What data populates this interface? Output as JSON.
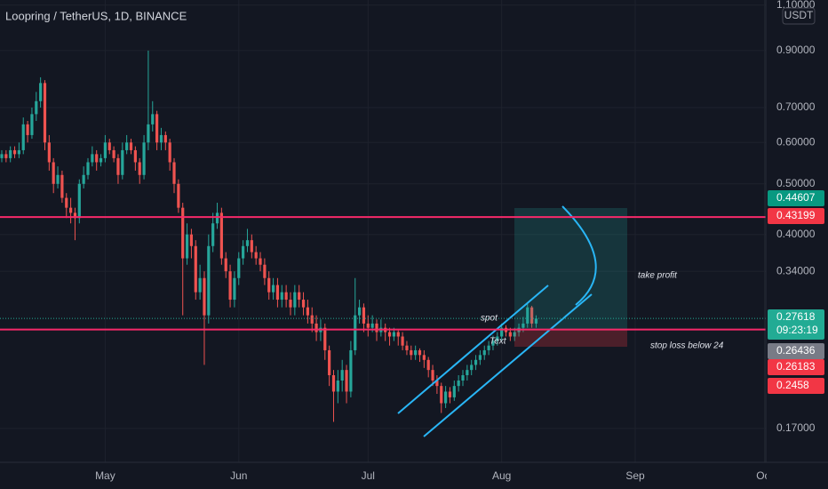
{
  "chart_data": {
    "type": "candlestick",
    "title": "Loopring / TetherUS, 1D, BINANCE",
    "currency": "USDT",
    "log": true,
    "grid": true,
    "up_color": "#26a69a",
    "down_color": "#ef5350",
    "xlim": [
      -0.41,
      177.3
    ],
    "xticks": [
      {
        "value": 24,
        "label": "May"
      },
      {
        "value": 55,
        "label": "Jun"
      },
      {
        "value": 85,
        "label": "Jul"
      },
      {
        "value": 116,
        "label": "Aug"
      },
      {
        "value": 147,
        "label": "Sep"
      },
      {
        "value": 177,
        "label": "Oct"
      }
    ],
    "ylim": [
      0.1464,
      1.125
    ],
    "yticks": [
      {
        "value": 1.1,
        "label": "1.10000"
      },
      {
        "value": 0.9,
        "label": "0.90000"
      },
      {
        "value": 0.7,
        "label": "0.70000"
      },
      {
        "value": 0.6,
        "label": "0.60000"
      },
      {
        "value": 0.5,
        "label": "0.50000"
      },
      {
        "value": 0.4,
        "label": "0.40000"
      },
      {
        "value": 0.34,
        "label": "0.34000"
      },
      {
        "value": 0.17,
        "label": "0.17000"
      }
    ],
    "candles": [
      [
        0.56,
        0.58,
        0.55,
        0.57
      ],
      [
        0.57,
        0.58,
        0.55,
        0.56
      ],
      [
        0.56,
        0.59,
        0.55,
        0.58
      ],
      [
        0.58,
        0.59,
        0.56,
        0.57
      ],
      [
        0.57,
        0.6,
        0.56,
        0.58
      ],
      [
        0.58,
        0.67,
        0.57,
        0.65
      ],
      [
        0.65,
        0.66,
        0.6,
        0.62
      ],
      [
        0.62,
        0.7,
        0.61,
        0.68
      ],
      [
        0.68,
        0.75,
        0.66,
        0.72
      ],
      [
        0.72,
        0.8,
        0.7,
        0.78
      ],
      [
        0.78,
        0.79,
        0.58,
        0.6
      ],
      [
        0.6,
        0.62,
        0.53,
        0.55
      ],
      [
        0.55,
        0.56,
        0.48,
        0.5
      ],
      [
        0.5,
        0.54,
        0.49,
        0.52
      ],
      [
        0.52,
        0.53,
        0.46,
        0.47
      ],
      [
        0.47,
        0.48,
        0.43,
        0.45
      ],
      [
        0.45,
        0.47,
        0.42,
        0.44
      ],
      [
        0.44,
        0.45,
        0.39,
        0.43
      ],
      [
        0.43,
        0.51,
        0.42,
        0.5
      ],
      [
        0.5,
        0.54,
        0.49,
        0.52
      ],
      [
        0.52,
        0.56,
        0.51,
        0.55
      ],
      [
        0.55,
        0.59,
        0.54,
        0.57
      ],
      [
        0.57,
        0.58,
        0.53,
        0.55
      ],
      [
        0.55,
        0.57,
        0.54,
        0.56
      ],
      [
        0.56,
        0.62,
        0.55,
        0.6
      ],
      [
        0.6,
        0.61,
        0.57,
        0.58
      ],
      [
        0.58,
        0.59,
        0.55,
        0.56
      ],
      [
        0.56,
        0.57,
        0.5,
        0.52
      ],
      [
        0.52,
        0.6,
        0.51,
        0.58
      ],
      [
        0.58,
        0.62,
        0.57,
        0.6
      ],
      [
        0.6,
        0.61,
        0.57,
        0.58
      ],
      [
        0.58,
        0.59,
        0.53,
        0.55
      ],
      [
        0.55,
        0.56,
        0.5,
        0.52
      ],
      [
        0.52,
        0.62,
        0.51,
        0.6
      ],
      [
        0.6,
        0.9,
        0.58,
        0.65
      ],
      [
        0.65,
        0.72,
        0.63,
        0.68
      ],
      [
        0.68,
        0.69,
        0.58,
        0.6
      ],
      [
        0.6,
        0.64,
        0.58,
        0.62
      ],
      [
        0.62,
        0.63,
        0.58,
        0.6
      ],
      [
        0.6,
        0.61,
        0.53,
        0.55
      ],
      [
        0.55,
        0.56,
        0.48,
        0.5
      ],
      [
        0.5,
        0.51,
        0.44,
        0.45
      ],
      [
        0.45,
        0.46,
        0.28,
        0.36
      ],
      [
        0.36,
        0.42,
        0.35,
        0.4
      ],
      [
        0.4,
        0.41,
        0.36,
        0.38
      ],
      [
        0.38,
        0.39,
        0.3,
        0.31
      ],
      [
        0.31,
        0.35,
        0.3,
        0.33
      ],
      [
        0.33,
        0.34,
        0.225,
        0.28
      ],
      [
        0.28,
        0.4,
        0.27,
        0.38
      ],
      [
        0.38,
        0.44,
        0.37,
        0.42
      ],
      [
        0.42,
        0.46,
        0.41,
        0.44
      ],
      [
        0.44,
        0.45,
        0.35,
        0.36
      ],
      [
        0.36,
        0.37,
        0.33,
        0.34
      ],
      [
        0.34,
        0.35,
        0.29,
        0.3
      ],
      [
        0.3,
        0.34,
        0.29,
        0.33
      ],
      [
        0.33,
        0.37,
        0.32,
        0.36
      ],
      [
        0.36,
        0.39,
        0.35,
        0.38
      ],
      [
        0.38,
        0.41,
        0.37,
        0.39
      ],
      [
        0.39,
        0.4,
        0.36,
        0.37
      ],
      [
        0.37,
        0.38,
        0.35,
        0.36
      ],
      [
        0.36,
        0.37,
        0.34,
        0.35
      ],
      [
        0.35,
        0.36,
        0.32,
        0.33
      ],
      [
        0.33,
        0.34,
        0.3,
        0.31
      ],
      [
        0.31,
        0.33,
        0.3,
        0.32
      ],
      [
        0.32,
        0.33,
        0.29,
        0.3
      ],
      [
        0.3,
        0.32,
        0.29,
        0.31
      ],
      [
        0.31,
        0.32,
        0.29,
        0.3
      ],
      [
        0.3,
        0.31,
        0.28,
        0.29
      ],
      [
        0.29,
        0.32,
        0.28,
        0.31
      ],
      [
        0.31,
        0.32,
        0.29,
        0.3
      ],
      [
        0.3,
        0.31,
        0.28,
        0.29
      ],
      [
        0.29,
        0.3,
        0.27,
        0.28
      ],
      [
        0.28,
        0.29,
        0.26,
        0.27
      ],
      [
        0.27,
        0.28,
        0.25,
        0.26
      ],
      [
        0.26,
        0.275,
        0.25,
        0.265
      ],
      [
        0.265,
        0.27,
        0.23,
        0.24
      ],
      [
        0.24,
        0.245,
        0.205,
        0.215
      ],
      [
        0.215,
        0.22,
        0.175,
        0.2
      ],
      [
        0.2,
        0.22,
        0.19,
        0.21
      ],
      [
        0.21,
        0.23,
        0.2,
        0.22
      ],
      [
        0.22,
        0.225,
        0.19,
        0.2
      ],
      [
        0.2,
        0.25,
        0.195,
        0.24
      ],
      [
        0.24,
        0.33,
        0.235,
        0.28
      ],
      [
        0.28,
        0.3,
        0.27,
        0.29
      ],
      [
        0.29,
        0.295,
        0.26,
        0.27
      ],
      [
        0.27,
        0.28,
        0.255,
        0.265
      ],
      [
        0.265,
        0.28,
        0.26,
        0.27
      ],
      [
        0.27,
        0.275,
        0.25,
        0.26
      ],
      [
        0.26,
        0.275,
        0.255,
        0.265
      ],
      [
        0.265,
        0.27,
        0.25,
        0.26
      ],
      [
        0.26,
        0.265,
        0.245,
        0.255
      ],
      [
        0.255,
        0.265,
        0.25,
        0.26
      ],
      [
        0.26,
        0.262,
        0.245,
        0.255
      ],
      [
        0.255,
        0.26,
        0.24,
        0.245
      ],
      [
        0.245,
        0.25,
        0.235,
        0.24
      ],
      [
        0.24,
        0.245,
        0.23,
        0.235
      ],
      [
        0.235,
        0.245,
        0.23,
        0.24
      ],
      [
        0.24,
        0.242,
        0.228,
        0.235
      ],
      [
        0.235,
        0.24,
        0.222,
        0.23
      ],
      [
        0.23,
        0.233,
        0.213,
        0.22
      ],
      [
        0.22,
        0.225,
        0.205,
        0.21
      ],
      [
        0.21,
        0.215,
        0.198,
        0.205
      ],
      [
        0.205,
        0.208,
        0.182,
        0.19
      ],
      [
        0.19,
        0.205,
        0.186,
        0.2
      ],
      [
        0.2,
        0.204,
        0.19,
        0.195
      ],
      [
        0.195,
        0.21,
        0.192,
        0.205
      ],
      [
        0.205,
        0.215,
        0.2,
        0.21
      ],
      [
        0.21,
        0.22,
        0.205,
        0.215
      ],
      [
        0.215,
        0.225,
        0.21,
        0.22
      ],
      [
        0.22,
        0.23,
        0.215,
        0.225
      ],
      [
        0.225,
        0.235,
        0.22,
        0.23
      ],
      [
        0.23,
        0.24,
        0.225,
        0.235
      ],
      [
        0.235,
        0.245,
        0.23,
        0.24
      ],
      [
        0.24,
        0.25,
        0.235,
        0.245
      ],
      [
        0.245,
        0.256,
        0.24,
        0.25
      ],
      [
        0.25,
        0.26,
        0.245,
        0.255
      ],
      [
        0.255,
        0.27,
        0.25,
        0.265
      ],
      [
        0.265,
        0.268,
        0.255,
        0.26
      ],
      [
        0.26,
        0.265,
        0.25,
        0.255
      ],
      [
        0.255,
        0.265,
        0.25,
        0.26
      ],
      [
        0.26,
        0.27,
        0.255,
        0.265
      ],
      [
        0.265,
        0.278,
        0.26,
        0.27
      ],
      [
        0.27,
        0.295,
        0.265,
        0.29
      ],
      [
        0.29,
        0.292,
        0.265,
        0.27
      ],
      [
        0.27,
        0.28,
        0.265,
        0.276
      ]
    ],
    "hlines": [
      {
        "value": 0.43199,
        "color": "#f7296a"
      },
      {
        "value": 0.263,
        "color": "#f7296a"
      }
    ],
    "price_labels": [
      {
        "value": 0.44607,
        "color": "#089981"
      },
      {
        "value": 0.43199,
        "color": "#f23645"
      },
      {
        "value": 0.27618,
        "color": "#22ab94"
      },
      {
        "value": 0.26436,
        "color": "#787b86"
      },
      {
        "value": 0.26183,
        "color": "#f23645"
      },
      {
        "value": 0.2458,
        "color": "#f23645"
      }
    ],
    "countdown": "09:23:19",
    "annotations": [
      "take profit",
      "stop loss below 24",
      "spot",
      "Text"
    ]
  }
}
